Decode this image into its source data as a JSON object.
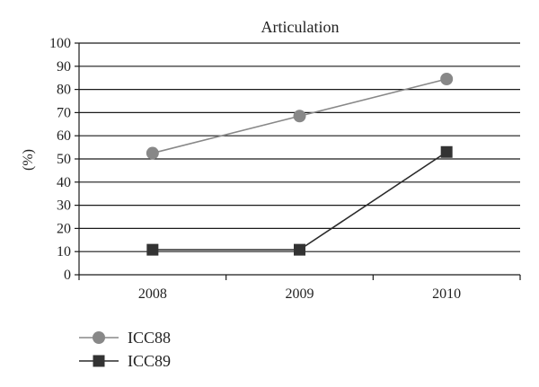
{
  "chart_data": {
    "type": "line",
    "title": "Articulation",
    "xlabel": "",
    "ylabel": "(%)",
    "categories": [
      "2008",
      "2009",
      "2010"
    ],
    "ylim": [
      0,
      100
    ],
    "yticks": [
      "0",
      "10",
      "20",
      "30",
      "40",
      "50",
      "60",
      "70",
      "80",
      "90",
      "100"
    ],
    "grid": true,
    "legend_position": "bottom-left",
    "series": [
      {
        "name": "ICC88",
        "values": [
          52.5,
          68.5,
          84.5
        ],
        "marker": "circle",
        "color": "#888888",
        "line_color": "#888888"
      },
      {
        "name": "ICC89",
        "values": [
          10.8,
          10.8,
          53
        ],
        "marker": "square",
        "color": "#333333",
        "line_color": "#2a2a2a"
      }
    ]
  }
}
